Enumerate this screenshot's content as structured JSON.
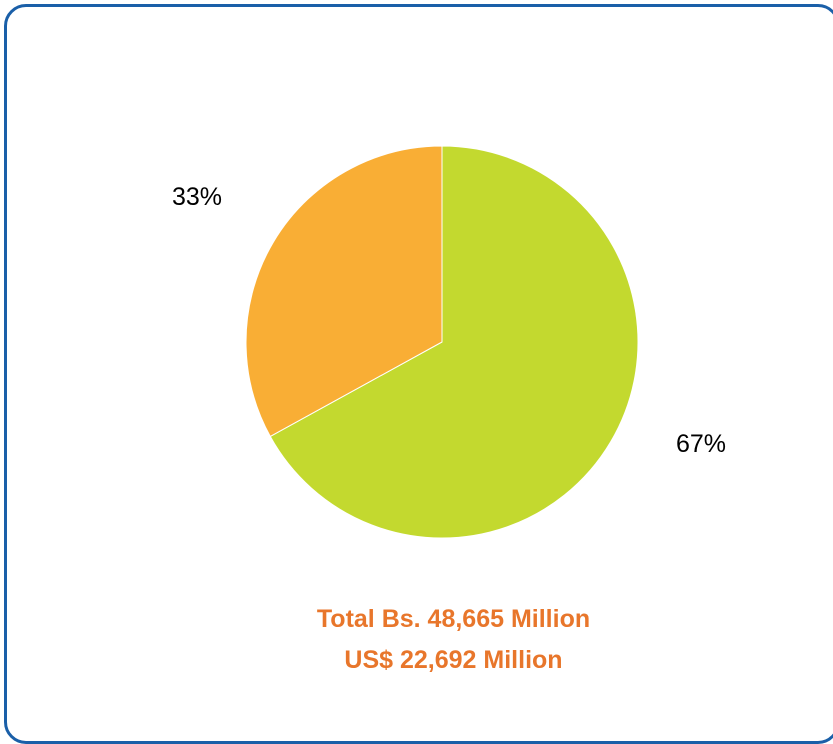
{
  "chart_data": {
    "type": "pie",
    "slices": [
      {
        "label": "67%",
        "value": 67,
        "color": "#c3d92f"
      },
      {
        "label": "33%",
        "value": 33,
        "color": "#f9ae35"
      }
    ],
    "start_angle_deg": 0,
    "direction": "clockwise"
  },
  "totals": {
    "line1": "Total Bs. 48,665 Million",
    "line2": "US$ 22,692 Million",
    "color": "#e8762b"
  },
  "frame": {
    "border_color": "#1a5fa8"
  }
}
